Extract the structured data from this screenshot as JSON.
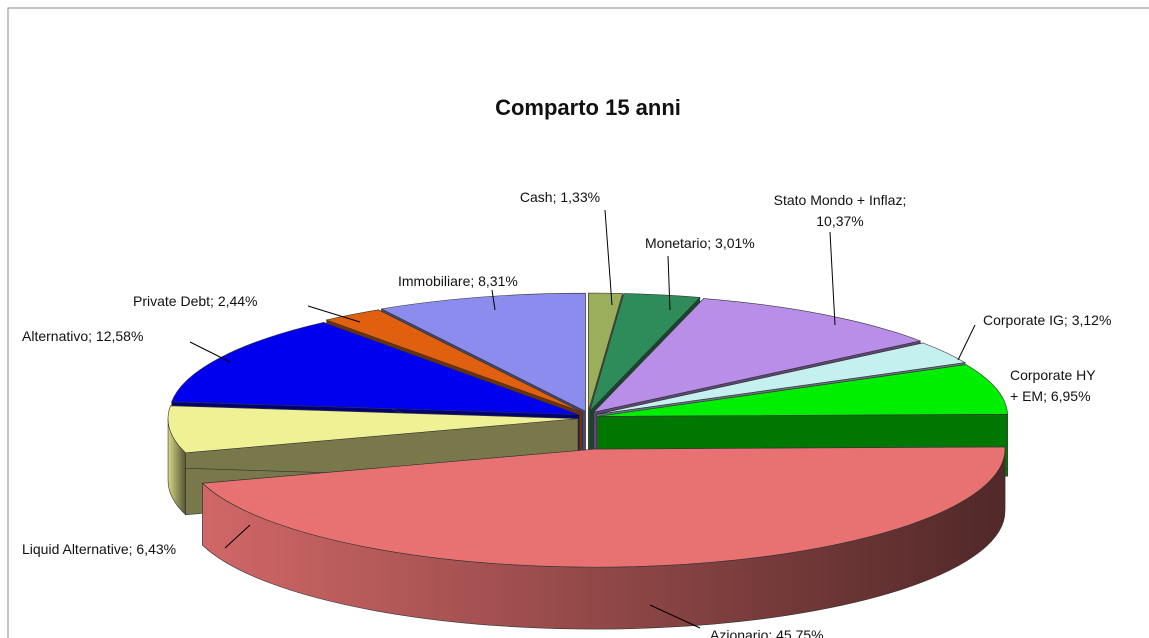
{
  "chart_data": {
    "type": "pie3d",
    "title": "Comparto 15 anni",
    "values": [
      1.33,
      3.01,
      10.37,
      3.12,
      6.95,
      45.75,
      6.43,
      12.58,
      2.44,
      8.31
    ],
    "value_labels": [
      "Cash; 1,33%",
      "Monetario; 3,01%",
      "Stato Mondo + Inflaz;\n10,37%",
      "Corporate IG; 3,12%",
      "Corporate HY\n+ EM; 6,95%",
      "Azionario; 45,75%",
      "Liquid Alternative; 6,43%",
      "Alternativo; 12,58%",
      "Private Debt; 2,44%",
      "Immobiliare; 8,31%"
    ],
    "colors": [
      "#9aae5c",
      "#2e8b5a",
      "#b88ee8",
      "#c4f0f0",
      "#00ee00",
      "#e87272",
      "#f0f094",
      "#0000ee",
      "#e06010",
      "#8c8cee"
    ]
  }
}
